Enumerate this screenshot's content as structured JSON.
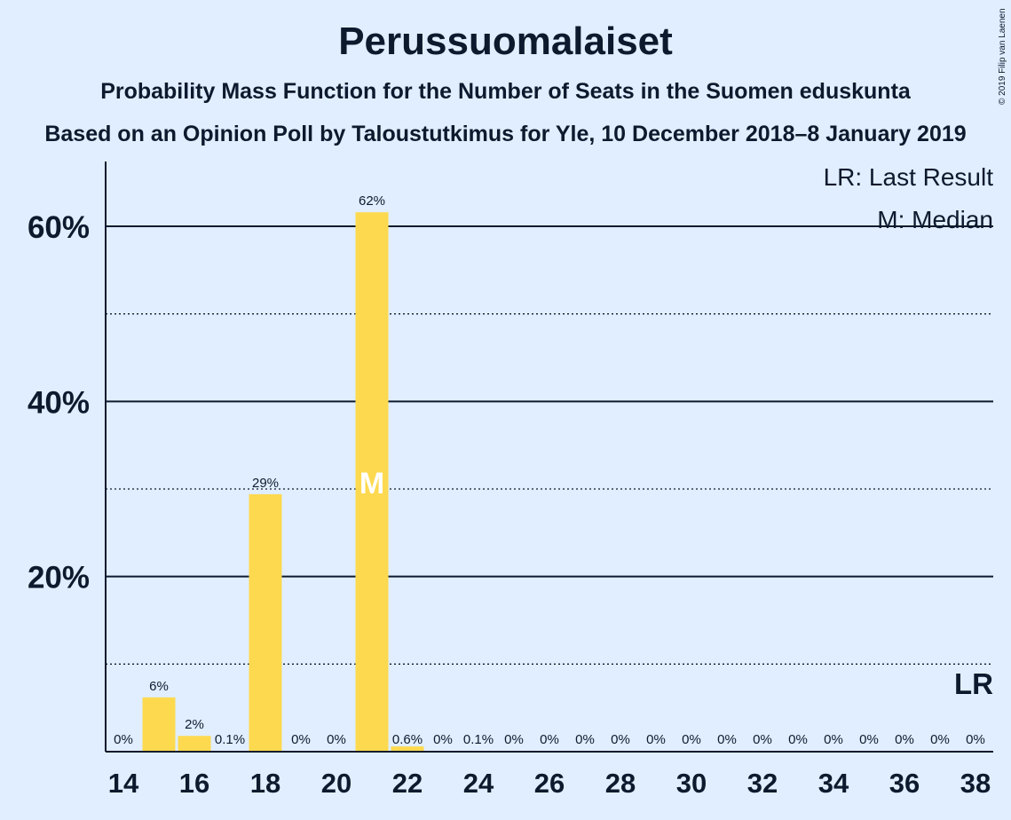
{
  "title": "Perussuomalaiset",
  "subtitle1": "Probability Mass Function for the Number of Seats in the Suomen eduskunta",
  "subtitle2": "Based on an Opinion Poll by Taloustutkimus for Yle, 10 December 2018–8 January 2019",
  "copyright": "© 2019 Filip van Laenen",
  "legend": {
    "last_result": "LR: Last Result",
    "median": "M: Median"
  },
  "colors": {
    "bar": "#fdd94f",
    "background": "#e0eeff",
    "text": "#0d1a2e",
    "median_mark": "#ffffff"
  },
  "chart_data": {
    "type": "bar",
    "x": [
      14,
      15,
      16,
      17,
      18,
      19,
      20,
      21,
      22,
      23,
      24,
      25,
      26,
      27,
      28,
      29,
      30,
      31,
      32,
      33,
      34,
      35,
      36,
      37,
      38
    ],
    "values": [
      0,
      6.2,
      1.8,
      0.1,
      29.4,
      0,
      0,
      61.6,
      0.6,
      0,
      0.1,
      0,
      0,
      0,
      0,
      0,
      0,
      0,
      0,
      0,
      0,
      0,
      0,
      0,
      0
    ],
    "labels": [
      "0%",
      "6%",
      "2%",
      "0.1%",
      "29%",
      "0%",
      "0%",
      "62%",
      "0.6%",
      "0%",
      "0.1%",
      "0%",
      "0%",
      "0%",
      "0%",
      "0%",
      "0%",
      "0%",
      "0%",
      "0%",
      "0%",
      "0%",
      "0%",
      "0%",
      "0%"
    ],
    "x_ticks": [
      "14",
      "16",
      "18",
      "20",
      "22",
      "24",
      "26",
      "28",
      "30",
      "32",
      "34",
      "36",
      "38"
    ],
    "y_ticks": [
      "20%",
      "40%",
      "60%"
    ],
    "ylim": [
      0,
      67
    ],
    "median_seat": 21,
    "median_marker": "M",
    "last_result_seat": 38,
    "last_result_marker": "LR",
    "xlabel": "",
    "ylabel": ""
  }
}
